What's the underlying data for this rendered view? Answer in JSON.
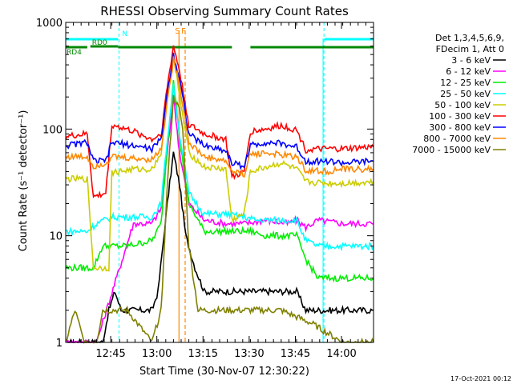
{
  "chart_data": {
    "type": "line",
    "title": "RHESSI Observing Summary Count Rates",
    "xlabel": "Start Time (30-Nov-07 12:30:22)",
    "ylabel": "Count Rate (s⁻¹ detector⁻¹)",
    "y_scale": "log",
    "ylim": [
      1,
      1000
    ],
    "xlim_minutes": [
      0,
      100
    ],
    "x_ticks": [
      {
        "label": "12:45",
        "t": 14.6
      },
      {
        "label": "13:00",
        "t": 29.6
      },
      {
        "label": "13:15",
        "t": 44.6
      },
      {
        "label": "13:30",
        "t": 59.6
      },
      {
        "label": "13:45",
        "t": 74.6
      },
      {
        "label": "14:00",
        "t": 89.6
      }
    ],
    "y_ticks": [
      {
        "label": "1",
        "v": 1
      },
      {
        "label": "10",
        "v": 10
      },
      {
        "label": "100",
        "v": 100
      },
      {
        "label": "1000",
        "v": 1000
      }
    ],
    "legend": {
      "header": [
        "Det 1,3,4,5,6,9,",
        "FDecim 1, Att 0"
      ],
      "placement": "right"
    },
    "series": [
      {
        "name": "3 - 6 keV",
        "color": "#000000",
        "points": [
          [
            0,
            1
          ],
          [
            12,
            1
          ],
          [
            14,
            2
          ],
          [
            16,
            3
          ],
          [
            18,
            2
          ],
          [
            20,
            2
          ],
          [
            28,
            2
          ],
          [
            30,
            3
          ],
          [
            33,
            20
          ],
          [
            35,
            60
          ],
          [
            37,
            30
          ],
          [
            39,
            10
          ],
          [
            42,
            5
          ],
          [
            45,
            3
          ],
          [
            55,
            3
          ],
          [
            60,
            3
          ],
          [
            70,
            3
          ],
          [
            75,
            3
          ],
          [
            78,
            2
          ],
          [
            85,
            2
          ],
          [
            92,
            2
          ],
          [
            100,
            2
          ]
        ]
      },
      {
        "name": "6 - 12 keV",
        "color": "#ff00ff",
        "points": [
          [
            0,
            1
          ],
          [
            7,
            1
          ],
          [
            8,
            1
          ],
          [
            10,
            1
          ],
          [
            22,
            13
          ],
          [
            28,
            13
          ],
          [
            31,
            18
          ],
          [
            33,
            60
          ],
          [
            35,
            200
          ],
          [
            37,
            60
          ],
          [
            40,
            20
          ],
          [
            45,
            14
          ],
          [
            52,
            13
          ],
          [
            58,
            13
          ],
          [
            65,
            14
          ],
          [
            72,
            13
          ],
          [
            75,
            14
          ],
          [
            78,
            12
          ],
          [
            82,
            14
          ],
          [
            90,
            13
          ],
          [
            100,
            13
          ]
        ]
      },
      {
        "name": "12 - 25 keV",
        "color": "#00ee00",
        "points": [
          [
            0,
            5
          ],
          [
            9,
            5
          ],
          [
            12,
            8
          ],
          [
            15,
            8
          ],
          [
            20,
            8
          ],
          [
            28,
            9
          ],
          [
            31,
            13
          ],
          [
            33,
            70
          ],
          [
            35,
            300
          ],
          [
            37,
            80
          ],
          [
            40,
            20
          ],
          [
            45,
            11
          ],
          [
            55,
            11
          ],
          [
            60,
            11
          ],
          [
            65,
            10
          ],
          [
            72,
            10
          ],
          [
            75,
            10
          ],
          [
            78,
            6
          ],
          [
            82,
            4
          ],
          [
            90,
            4
          ],
          [
            100,
            4
          ]
        ]
      },
      {
        "name": "25 - 50 keV",
        "color": "#00ffff",
        "points": [
          [
            0,
            11
          ],
          [
            7,
            11
          ],
          [
            10,
            13
          ],
          [
            15,
            15
          ],
          [
            20,
            15
          ],
          [
            28,
            15
          ],
          [
            31,
            20
          ],
          [
            33,
            80
          ],
          [
            35,
            250
          ],
          [
            37,
            90
          ],
          [
            40,
            25
          ],
          [
            45,
            16
          ],
          [
            52,
            16
          ],
          [
            58,
            15
          ],
          [
            62,
            14
          ],
          [
            70,
            14
          ],
          [
            75,
            14
          ],
          [
            78,
            9
          ],
          [
            82,
            8
          ],
          [
            90,
            8
          ],
          [
            100,
            8
          ]
        ]
      },
      {
        "name": "50 - 100 keV",
        "color": "#cccc00",
        "points": [
          [
            0,
            34
          ],
          [
            7,
            34
          ],
          [
            9,
            5
          ],
          [
            14,
            5
          ],
          [
            15,
            39
          ],
          [
            22,
            42
          ],
          [
            28,
            42
          ],
          [
            31,
            60
          ],
          [
            33,
            200
          ],
          [
            35,
            500
          ],
          [
            37,
            200
          ],
          [
            40,
            60
          ],
          [
            45,
            44
          ],
          [
            52,
            42
          ],
          [
            54,
            14
          ],
          [
            58,
            16
          ],
          [
            60,
            40
          ],
          [
            65,
            44
          ],
          [
            70,
            48
          ],
          [
            75,
            42
          ],
          [
            78,
            32
          ],
          [
            85,
            31
          ],
          [
            90,
            31
          ],
          [
            100,
            32
          ]
        ]
      },
      {
        "name": "100 - 300 keV",
        "color": "#ff0000",
        "points": [
          [
            0,
            85
          ],
          [
            7,
            90
          ],
          [
            9,
            23
          ],
          [
            13,
            25
          ],
          [
            15,
            110
          ],
          [
            22,
            95
          ],
          [
            28,
            80
          ],
          [
            31,
            90
          ],
          [
            33,
            250
          ],
          [
            35,
            600
          ],
          [
            37,
            350
          ],
          [
            40,
            110
          ],
          [
            45,
            90
          ],
          [
            52,
            80
          ],
          [
            54,
            35
          ],
          [
            58,
            40
          ],
          [
            60,
            95
          ],
          [
            65,
            100
          ],
          [
            70,
            108
          ],
          [
            75,
            98
          ],
          [
            78,
            64
          ],
          [
            85,
            65
          ],
          [
            90,
            65
          ],
          [
            100,
            68
          ]
        ]
      },
      {
        "name": "300 - 800 keV",
        "color": "#0000ff",
        "points": [
          [
            0,
            70
          ],
          [
            7,
            75
          ],
          [
            9,
            50
          ],
          [
            13,
            50
          ],
          [
            15,
            75
          ],
          [
            22,
            70
          ],
          [
            28,
            65
          ],
          [
            31,
            80
          ],
          [
            33,
            220
          ],
          [
            35,
            500
          ],
          [
            37,
            300
          ],
          [
            40,
            90
          ],
          [
            45,
            70
          ],
          [
            52,
            63
          ],
          [
            54,
            48
          ],
          [
            58,
            45
          ],
          [
            60,
            70
          ],
          [
            65,
            75
          ],
          [
            70,
            73
          ],
          [
            75,
            68
          ],
          [
            78,
            50
          ],
          [
            85,
            50
          ],
          [
            90,
            48
          ],
          [
            100,
            50
          ]
        ]
      },
      {
        "name": "800 - 7000 keV",
        "color": "#ff8800",
        "points": [
          [
            0,
            55
          ],
          [
            7,
            55
          ],
          [
            9,
            45
          ],
          [
            13,
            48
          ],
          [
            15,
            55
          ],
          [
            22,
            53
          ],
          [
            28,
            52
          ],
          [
            31,
            65
          ],
          [
            33,
            180
          ],
          [
            35,
            450
          ],
          [
            37,
            260
          ],
          [
            40,
            75
          ],
          [
            45,
            55
          ],
          [
            52,
            50
          ],
          [
            54,
            40
          ],
          [
            58,
            38
          ],
          [
            60,
            58
          ],
          [
            65,
            60
          ],
          [
            70,
            57
          ],
          [
            75,
            55
          ],
          [
            78,
            41
          ],
          [
            85,
            40
          ],
          [
            90,
            42
          ],
          [
            100,
            42
          ]
        ]
      },
      {
        "name": "7000 - 15000 keV",
        "color": "#808000",
        "points": [
          [
            0,
            1
          ],
          [
            3,
            2
          ],
          [
            6,
            1
          ],
          [
            10,
            1
          ],
          [
            12,
            2
          ],
          [
            15,
            2
          ],
          [
            20,
            2
          ],
          [
            28,
            1
          ],
          [
            31,
            2
          ],
          [
            33,
            30
          ],
          [
            35,
            200
          ],
          [
            37,
            150
          ],
          [
            38,
            100
          ],
          [
            40,
            8
          ],
          [
            43,
            2
          ],
          [
            50,
            2
          ],
          [
            60,
            2
          ],
          [
            70,
            2
          ],
          [
            80,
            1.5
          ],
          [
            90,
            1
          ],
          [
            100,
            1
          ]
        ]
      }
    ],
    "annotations": [
      {
        "type": "hbar",
        "label": "N",
        "color": "#00ffff",
        "segments": [
          [
            0,
            17
          ]
        ],
        "level": 1
      },
      {
        "type": "hbar",
        "label": "",
        "color": "#00ffff",
        "segments": [
          [
            84,
            100
          ]
        ],
        "level": 1
      },
      {
        "type": "hbar",
        "label": "RD0",
        "color": "#008800",
        "segments": [
          [
            8,
            17
          ]
        ],
        "level": 2
      },
      {
        "type": "hbar",
        "label": "RD4",
        "color": "#008800",
        "segments": [
          [
            0,
            7
          ]
        ],
        "level": 3
      },
      {
        "type": "hbar",
        "label": "",
        "color": "#008800",
        "segments": [
          [
            17,
            54
          ],
          [
            60,
            100
          ]
        ],
        "level": 3
      },
      {
        "type": "vline",
        "label": "S",
        "color": "#ff8800",
        "t": 36.8
      },
      {
        "type": "vline",
        "label": "F",
        "color": "#ff8800",
        "t": 38.8
      }
    ],
    "vertical_markers_cyan": [
      17.3,
      83.9,
      100
    ],
    "grid": false
  },
  "footer": {
    "timestamp": "17-Oct-2021 00:12"
  }
}
